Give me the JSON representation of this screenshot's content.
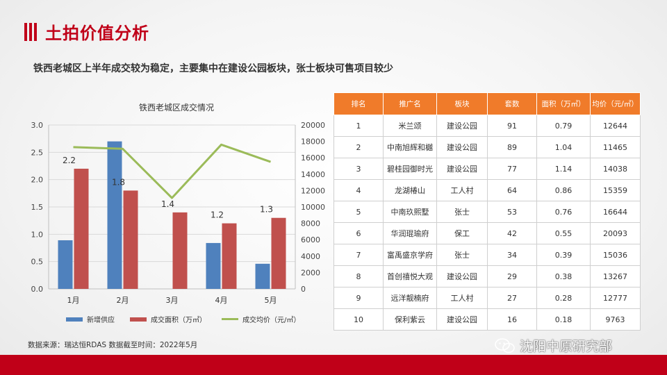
{
  "header": {
    "title": "土拍价值分析",
    "subtitle": "铁西老城区上半年成交较为稳定，主要集中在建设公园板块，张士板块可售项目较少"
  },
  "colors": {
    "accent": "#c00018",
    "table_header": "#f07b2a",
    "supply": "#4f81bd",
    "area": "#c0504d",
    "price": "#9bbb59"
  },
  "chart_data": {
    "type": "bar",
    "title": "铁西老城区成交情况",
    "categories": [
      "1月",
      "2月",
      "3月",
      "4月",
      "5月"
    ],
    "series": [
      {
        "name": "新增供应",
        "type": "bar",
        "axis": "left",
        "values": [
          0.89,
          2.7,
          0.0,
          0.84,
          0.46
        ]
      },
      {
        "name": "成交面积（万㎡）",
        "type": "bar",
        "axis": "left",
        "values": [
          2.2,
          1.8,
          1.4,
          1.2,
          1.3
        ],
        "labels": [
          "2.2",
          "1.8",
          "1.4",
          "1.2",
          "1.3"
        ]
      },
      {
        "name": "成交均价（元/㎡）",
        "type": "line",
        "axis": "right",
        "values": [
          17300,
          17100,
          11100,
          17600,
          15500
        ]
      }
    ],
    "ylim_left": [
      0,
      3.0
    ],
    "yticks_left": [
      "0.0",
      "0.5",
      "1.0",
      "1.5",
      "2.0",
      "2.5",
      "3.0"
    ],
    "ylim_right": [
      0,
      20000
    ],
    "yticks_right": [
      "0",
      "2000",
      "4000",
      "6000",
      "8000",
      "10000",
      "12000",
      "14000",
      "16000",
      "18000",
      "20000"
    ],
    "grid": true,
    "legend": "bottom"
  },
  "table": {
    "headers": [
      "排名",
      "推广名",
      "板块",
      "套数",
      "面积（万㎡）",
      "均价（元/㎡）"
    ],
    "rows": [
      [
        "1",
        "米兰颂",
        "建设公园",
        "91",
        "0.79",
        "12644"
      ],
      [
        "2",
        "中南旭辉和樾",
        "建设公园",
        "89",
        "1.04",
        "11465"
      ],
      [
        "3",
        "碧桂园御时光",
        "建设公园",
        "77",
        "1.14",
        "14038"
      ],
      [
        "4",
        "龙湖椿山",
        "工人村",
        "64",
        "0.86",
        "15359"
      ],
      [
        "5",
        "中南玖熙墅",
        "张士",
        "53",
        "0.76",
        "16644"
      ],
      [
        "6",
        "华润琨瑜府",
        "保工",
        "42",
        "0.55",
        "20093"
      ],
      [
        "7",
        "富禹盛京学府",
        "张士",
        "34",
        "0.39",
        "15036"
      ],
      [
        "8",
        "首创禧悦大观",
        "建设公园",
        "29",
        "0.38",
        "13267"
      ],
      [
        "9",
        "远洋靓楠府",
        "工人村",
        "27",
        "0.28",
        "12777"
      ],
      [
        "10",
        "保利紫云",
        "建设公园",
        "16",
        "0.18",
        "9763"
      ]
    ]
  },
  "footer": {
    "source": "数据来源：瑞达恒RDAS   数据截至时间：2022年5月",
    "watermark": "沈阳中原研究部",
    "watermark_icon": "wechat-icon"
  }
}
